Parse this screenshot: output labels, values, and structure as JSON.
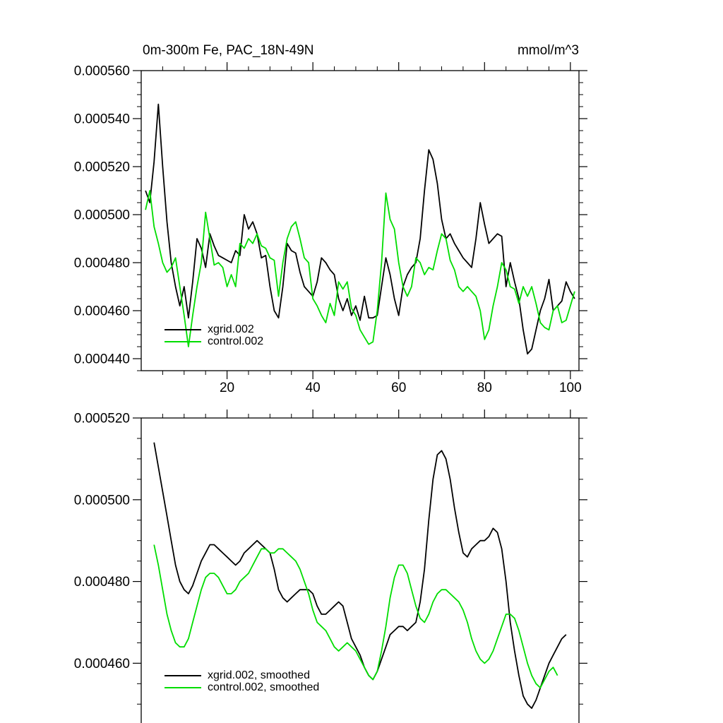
{
  "page": {
    "background": "#ffffff",
    "axis_color": "#000000"
  },
  "chart_data": [
    {
      "type": "line",
      "title": "0m-300m Fe, PAC_18N-49N",
      "units_label": "mmol/m^3",
      "xlabel": "",
      "ylabel": "",
      "xlim": [
        0,
        102
      ],
      "ylim": [
        0.000435,
        0.00056
      ],
      "xticks_major": [
        20,
        40,
        60,
        80,
        100
      ],
      "xtick_labels": [
        "20",
        "40",
        "60",
        "80",
        "100"
      ],
      "xticks_minor_step": 5,
      "yticks_major": [
        0.00044,
        0.00046,
        0.00048,
        0.0005,
        0.00052,
        0.00054,
        0.00056
      ],
      "ytick_labels": [
        "0.000440",
        "0.000460",
        "0.000480",
        "0.000500",
        "0.000520",
        "0.000540",
        "0.000560"
      ],
      "yticks_minor_step": 5e-06,
      "grid": false,
      "legend_position": "inside-bottom-left",
      "legend": [
        {
          "label": "xgrid.002",
          "color": "#000000"
        },
        {
          "label": "control.002",
          "color": "#00dd00"
        }
      ],
      "value_scale": 1e-06,
      "series": [
        {
          "name": "xgrid.002",
          "color": "#000000",
          "x_start": 1,
          "values": [
            510,
            505,
            522,
            546,
            520,
            497,
            480,
            470,
            462,
            470,
            457,
            472,
            490,
            486,
            478,
            492,
            487,
            483,
            482,
            481,
            480,
            485,
            483,
            500,
            494,
            497,
            492,
            482,
            483,
            470,
            460,
            457,
            470,
            488,
            485,
            484,
            476,
            470,
            468,
            466,
            472,
            482,
            480,
            477,
            475,
            465,
            460,
            465,
            458,
            462,
            456,
            466,
            457,
            457,
            458,
            470,
            482,
            475,
            465,
            458,
            470,
            475,
            478,
            480,
            490,
            510,
            527,
            523,
            513,
            498,
            490,
            492,
            488,
            485,
            482,
            480,
            478,
            490,
            505,
            496,
            488,
            490,
            492,
            491,
            470,
            480,
            472,
            465,
            452,
            442,
            444,
            452,
            460,
            465,
            473,
            460,
            462,
            464,
            472,
            468,
            465
          ]
        },
        {
          "name": "control.002",
          "color": "#00dd00",
          "x_start": 1,
          "values": [
            502,
            510,
            495,
            488,
            480,
            476,
            478,
            482,
            470,
            458,
            445,
            458,
            470,
            480,
            501,
            490,
            479,
            480,
            478,
            470,
            475,
            470,
            488,
            486,
            490,
            488,
            492,
            487,
            486,
            482,
            481,
            466,
            480,
            490,
            495,
            497,
            490,
            482,
            480,
            465,
            462,
            458,
            455,
            463,
            458,
            472,
            469,
            472,
            461,
            458,
            452,
            449,
            446,
            447,
            460,
            480,
            509,
            498,
            494,
            480,
            470,
            466,
            470,
            482,
            480,
            475,
            478,
            477,
            485,
            492,
            490,
            481,
            477,
            470,
            468,
            470,
            468,
            466,
            460,
            448,
            452,
            462,
            470,
            480,
            477,
            470,
            469,
            463,
            470,
            466,
            470,
            463,
            455,
            453,
            452,
            460,
            462,
            455,
            456,
            462,
            468
          ]
        }
      ]
    },
    {
      "type": "line",
      "title": "",
      "units_label": "",
      "xlabel": "",
      "ylabel": "",
      "xlim": [
        0,
        102
      ],
      "ylim": [
        0.000444,
        0.00052
      ],
      "xticks_major": [
        20,
        40,
        60,
        80,
        100
      ],
      "xtick_labels": [],
      "xticks_minor_step": 5,
      "yticks_major": [
        0.00046,
        0.00048,
        0.0005,
        0.00052
      ],
      "ytick_labels": [
        "0.000460",
        "0.000480",
        "0.000500",
        "0.000520"
      ],
      "yticks_minor_step": 5e-06,
      "grid": false,
      "legend_position": "inside-bottom-left",
      "legend": [
        {
          "label": "xgrid.002, smoothed",
          "color": "#000000"
        },
        {
          "label": "control.002, smoothed",
          "color": "#00dd00"
        }
      ],
      "value_scale": 1e-06,
      "series": [
        {
          "name": "xgrid.002, smoothed",
          "color": "#000000",
          "x_start": 3,
          "values": [
            514,
            508,
            502,
            496,
            490,
            484,
            480,
            478,
            477,
            479,
            482,
            485,
            487,
            489,
            489,
            488,
            487,
            486,
            485,
            484,
            485,
            487,
            488,
            489,
            490,
            489,
            488,
            487,
            483,
            478,
            476,
            475,
            476,
            477,
            478,
            478,
            478,
            477,
            474,
            472,
            472,
            473,
            474,
            475,
            474,
            470,
            466,
            464,
            462,
            459,
            457,
            456,
            458,
            461,
            464,
            467,
            468,
            469,
            469,
            468,
            469,
            470,
            475,
            483,
            495,
            505,
            511,
            512,
            510,
            505,
            498,
            492,
            487,
            486,
            488,
            489,
            490,
            490,
            491,
            493,
            492,
            488,
            480,
            470,
            463,
            457,
            452,
            450,
            449,
            451,
            454,
            457,
            460,
            462,
            464,
            466,
            467
          ]
        },
        {
          "name": "control.002, smoothed",
          "color": "#00dd00",
          "x_start": 3,
          "values": [
            489,
            484,
            478,
            472,
            468,
            465,
            464,
            464,
            466,
            470,
            474,
            478,
            481,
            482,
            482,
            481,
            479,
            477,
            477,
            478,
            480,
            481,
            482,
            484,
            486,
            488,
            488,
            487,
            487,
            488,
            488,
            487,
            486,
            485,
            483,
            480,
            477,
            473,
            470,
            469,
            468,
            466,
            464,
            463,
            464,
            465,
            464,
            463,
            461,
            459,
            457,
            456,
            458,
            463,
            469,
            476,
            481,
            484,
            484,
            482,
            478,
            474,
            471,
            470,
            472,
            475,
            477,
            478,
            478,
            477,
            476,
            475,
            473,
            470,
            466,
            463,
            461,
            460,
            461,
            463,
            466,
            469,
            472,
            472,
            471,
            468,
            464,
            460,
            457,
            455,
            454,
            456,
            458,
            459,
            457
          ]
        }
      ]
    }
  ]
}
